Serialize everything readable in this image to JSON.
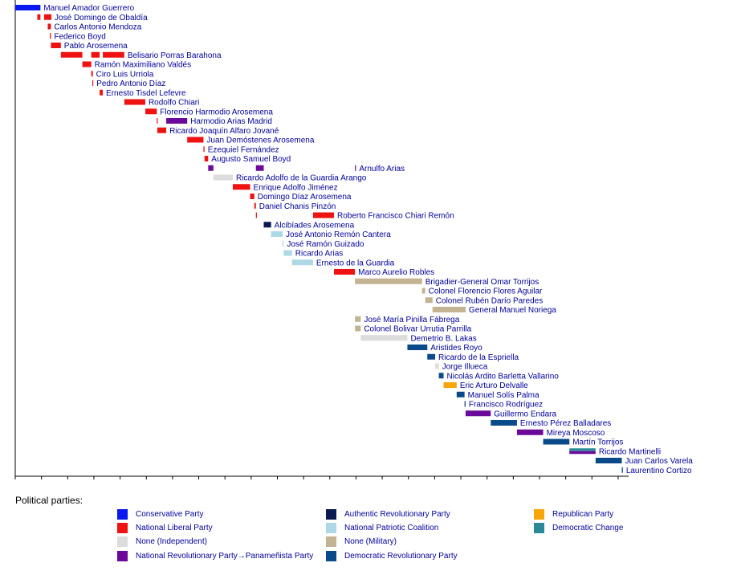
{
  "chart_data": {
    "type": "timeline",
    "xlim": [
      1904,
      2021
    ],
    "x_ticks": [
      1904,
      1909,
      1914,
      1919,
      1924,
      1929,
      1934,
      1939,
      1944,
      1949,
      1954,
      1959,
      1964,
      1969,
      1974,
      1979,
      1984,
      1989,
      1994,
      1999,
      2004,
      2009,
      2014,
      2019
    ],
    "legend_title": "Political parties:",
    "parties": [
      {
        "key": "conservative",
        "name": "Conservative Party",
        "color": "#0a18f0"
      },
      {
        "key": "liberal",
        "name": "National Liberal Party",
        "color": "#ee1212"
      },
      {
        "key": "independent",
        "name": "None (Independent)",
        "color": "#dcdcdc"
      },
      {
        "key": "panamenista",
        "name": "National Revolutionary Party→Panameñista Party",
        "color": "#6b0a9a"
      },
      {
        "key": "authentic",
        "name": "Authentic Revolutionary Party",
        "color": "#0c1a52"
      },
      {
        "key": "patriotic",
        "name": "National Patriotic Coalition",
        "color": "#add8e6"
      },
      {
        "key": "military",
        "name": "None (Military)",
        "color": "#c3b393"
      },
      {
        "key": "prd",
        "name": "Democratic Revolutionary Party",
        "color": "#0a4a8a"
      },
      {
        "key": "republican",
        "name": "Republican Party",
        "color": "#f7a60a"
      },
      {
        "key": "cd",
        "name": "Democratic Change",
        "color": "#2a8a98"
      }
    ],
    "presidents": [
      {
        "name": "Manuel Amador Guerrero",
        "terms": [
          [
            1904,
            1908.8,
            "conservative"
          ]
        ]
      },
      {
        "name": "José Domingo de Obaldía",
        "terms": [
          [
            1908.2,
            1908.8,
            "liberal"
          ],
          [
            1909.5,
            1910.9,
            "liberal"
          ]
        ]
      },
      {
        "name": "Carlos Antonio Mendoza",
        "terms": [
          [
            1910.2,
            1910.8,
            "liberal"
          ]
        ]
      },
      {
        "name": "Federico Boyd",
        "terms": [
          [
            1910.6,
            1910.8,
            "liberal"
          ]
        ]
      },
      {
        "name": "Pablo Arosemena",
        "terms": [
          [
            1910.8,
            1912.7,
            "liberal"
          ]
        ]
      },
      {
        "name": "Belisario Porras Barahona",
        "terms": [
          [
            1912.7,
            1916.8,
            "liberal"
          ],
          [
            1918.5,
            1920.1,
            "liberal"
          ],
          [
            1920.7,
            1924.8,
            "liberal"
          ]
        ]
      },
      {
        "name": "Ramón Maximiliano Valdés",
        "terms": [
          [
            1916.8,
            1918.5,
            "liberal"
          ]
        ]
      },
      {
        "name": "Ciro Luis Urriola",
        "terms": [
          [
            1918.5,
            1918.8,
            "liberal"
          ]
        ]
      },
      {
        "name": "Pedro Antonio Díaz",
        "terms": [
          [
            1918.7,
            1918.8,
            "liberal"
          ]
        ]
      },
      {
        "name": "Ernesto Tisdel Lefevre",
        "terms": [
          [
            1920.1,
            1920.7,
            "liberal"
          ]
        ]
      },
      {
        "name": "Rodolfo Chiari",
        "terms": [
          [
            1924.8,
            1928.8,
            "liberal"
          ]
        ]
      },
      {
        "name": "Florencio Harmodio Arosemena",
        "terms": [
          [
            1928.8,
            1931.0,
            "liberal"
          ]
        ]
      },
      {
        "name": "Harmodio Arias Madrid",
        "terms": [
          [
            1931.0,
            1931.1,
            "liberal"
          ],
          [
            1932.8,
            1936.8,
            "panamenista"
          ]
        ]
      },
      {
        "name": "Ricardo Joaquín Alfaro Jované",
        "terms": [
          [
            1931.1,
            1932.8,
            "liberal"
          ]
        ]
      },
      {
        "name": "Juan Demóstenes Arosemena",
        "terms": [
          [
            1936.8,
            1939.9,
            "liberal"
          ]
        ]
      },
      {
        "name": "Ezequiel Fernández",
        "terms": [
          [
            1939.9,
            1940.1,
            "liberal"
          ]
        ]
      },
      {
        "name": "Augusto Samuel Boyd",
        "terms": [
          [
            1940.1,
            1940.8,
            "liberal"
          ]
        ]
      },
      {
        "name": "Arnulfo Arias",
        "terms": [
          [
            1940.8,
            1941.8,
            "panamenista"
          ],
          [
            1949.9,
            1951.4,
            "panamenista"
          ],
          [
            1968.8,
            1968.9,
            "panamenista"
          ]
        ]
      },
      {
        "name": "Ricardo Adolfo de la Guardia Arango",
        "terms": [
          [
            1941.8,
            1945.5,
            "independent"
          ]
        ]
      },
      {
        "name": "Enrique Adolfo Jiménez",
        "terms": [
          [
            1945.5,
            1948.8,
            "liberal"
          ]
        ]
      },
      {
        "name": "Domingo Díaz Arosemena",
        "terms": [
          [
            1948.8,
            1949.6,
            "liberal"
          ]
        ]
      },
      {
        "name": "Daniel Chanis Pinzón",
        "terms": [
          [
            1949.6,
            1949.9,
            "liberal"
          ]
        ]
      },
      {
        "name": "Roberto Francisco Chiari Remón",
        "terms": [
          [
            1949.9,
            1950.0,
            "liberal"
          ],
          [
            1960.8,
            1964.8,
            "liberal"
          ]
        ]
      },
      {
        "name": "Alcibíades Arosemena",
        "terms": [
          [
            1951.4,
            1952.8,
            "authentic"
          ]
        ]
      },
      {
        "name": "José Antonio Remón Cantera",
        "terms": [
          [
            1952.8,
            1955.0,
            "patriotic"
          ]
        ]
      },
      {
        "name": "José Ramón Guizado",
        "terms": [
          [
            1955.0,
            1955.2,
            "patriotic"
          ]
        ]
      },
      {
        "name": "Ricardo Arias",
        "terms": [
          [
            1955.2,
            1956.8,
            "patriotic"
          ]
        ]
      },
      {
        "name": "Ernesto de la Guardia",
        "terms": [
          [
            1956.8,
            1960.8,
            "patriotic"
          ]
        ]
      },
      {
        "name": "Marco Aurelio Robles",
        "terms": [
          [
            1964.8,
            1968.8,
            "liberal"
          ]
        ]
      },
      {
        "name": "Brigadier-General Omar Torrijos",
        "terms": [
          [
            1968.8,
            1981.6,
            "military"
          ]
        ]
      },
      {
        "name": "Colonel Florencio Flores Aguilar",
        "terms": [
          [
            1981.6,
            1982.2,
            "military"
          ]
        ]
      },
      {
        "name": "Colonel Rubén Darío Paredes",
        "terms": [
          [
            1982.2,
            1983.6,
            "military"
          ]
        ]
      },
      {
        "name": "General Manuel Noriega",
        "terms": [
          [
            1983.6,
            1989.9,
            "military"
          ]
        ]
      },
      {
        "name": "José María Pinilla Fábrega",
        "terms": [
          [
            1968.8,
            1969.9,
            "military"
          ]
        ]
      },
      {
        "name": "Colonel Bolivar Urrutia Parrilla",
        "terms": [
          [
            1968.8,
            1969.9,
            "military"
          ]
        ]
      },
      {
        "name": "Demetrio B. Lakas",
        "terms": [
          [
            1969.9,
            1978.8,
            "independent"
          ]
        ]
      },
      {
        "name": "Aristides Royo",
        "terms": [
          [
            1978.8,
            1982.6,
            "prd"
          ]
        ]
      },
      {
        "name": "Ricardo de la Espriella",
        "terms": [
          [
            1982.6,
            1984.1,
            "prd"
          ]
        ]
      },
      {
        "name": "Jorge Illueca",
        "terms": [
          [
            1984.1,
            1984.8,
            "independent"
          ]
        ]
      },
      {
        "name": "Nicolás Ardito Barletta Vallarino",
        "terms": [
          [
            1984.8,
            1985.7,
            "prd"
          ]
        ]
      },
      {
        "name": "Eric Arturo Delvalle",
        "terms": [
          [
            1985.7,
            1988.2,
            "republican"
          ]
        ]
      },
      {
        "name": "Manuel Solís Palma",
        "terms": [
          [
            1988.2,
            1989.7,
            "prd"
          ]
        ]
      },
      {
        "name": "Francisco Rodríguez",
        "terms": [
          [
            1989.7,
            1989.9,
            "prd"
          ]
        ]
      },
      {
        "name": "Guillermo Endara",
        "terms": [
          [
            1989.9,
            1994.7,
            "panamenista"
          ]
        ]
      },
      {
        "name": "Ernesto Pérez Balladares",
        "terms": [
          [
            1994.7,
            1999.7,
            "prd"
          ]
        ]
      },
      {
        "name": "Mireya Moscoso",
        "terms": [
          [
            1999.7,
            2004.7,
            "panamenista"
          ]
        ]
      },
      {
        "name": "Martín Torrijos",
        "terms": [
          [
            2004.7,
            2009.7,
            "prd"
          ]
        ]
      },
      {
        "name": "Ricardo Martinelli",
        "terms": [
          [
            2009.7,
            2014.7,
            "cd"
          ],
          [
            2009.7,
            2014.7,
            "panamenista"
          ]
        ]
      },
      {
        "name": "Juan Carlos Varela",
        "terms": [
          [
            2014.7,
            2019.7,
            "prd"
          ]
        ]
      },
      {
        "name": "Laurentino Cortizo",
        "terms": [
          [
            2019.7,
            2019.9,
            "prd"
          ]
        ]
      }
    ]
  }
}
